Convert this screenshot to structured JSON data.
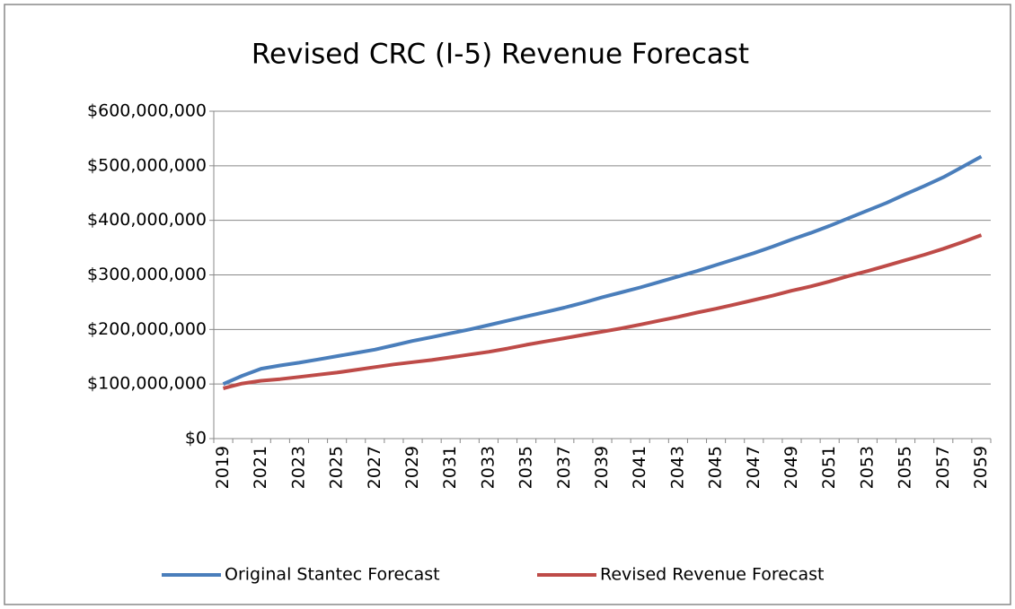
{
  "chart_data": {
    "type": "line",
    "title": "Revised CRC (I-5) Revenue Forecast",
    "categories": [
      "2019",
      null,
      "2021",
      null,
      "2023",
      null,
      "2025",
      null,
      "2027",
      null,
      "2029",
      null,
      "2031",
      null,
      "2033",
      null,
      "2035",
      null,
      "2037",
      null,
      "2039",
      null,
      "2041",
      null,
      "2043",
      null,
      "2045",
      null,
      "2047",
      null,
      "2049",
      null,
      "2051",
      null,
      "2053",
      null,
      "2055",
      null,
      "2057",
      null,
      "2059"
    ],
    "series": [
      {
        "name": "Original Stantec Forecast",
        "color": "#4a7ebb",
        "values": [
          100000000,
          115000000,
          128000000,
          134000000,
          139000000,
          145000000,
          151000000,
          157000000,
          163000000,
          171000000,
          179000000,
          186000000,
          193000000,
          200000000,
          208000000,
          216000000,
          224000000,
          232000000,
          240000000,
          249000000,
          259000000,
          268000000,
          277000000,
          287000000,
          297000000,
          307000000,
          318000000,
          329000000,
          340000000,
          352000000,
          365000000,
          377000000,
          390000000,
          404000000,
          418000000,
          432000000,
          448000000,
          463000000,
          479000000,
          498000000,
          517000000
        ]
      },
      {
        "name": "Revised Revenue Forecast",
        "color": "#be4b48",
        "values": [
          92000000,
          101000000,
          106000000,
          109000000,
          113000000,
          117000000,
          121000000,
          126000000,
          131000000,
          136000000,
          140000000,
          144000000,
          149000000,
          154000000,
          159000000,
          165000000,
          172000000,
          178000000,
          184000000,
          190000000,
          196000000,
          202000000,
          209000000,
          216000000,
          223000000,
          231000000,
          238000000,
          246000000,
          254000000,
          262000000,
          271000000,
          279000000,
          288000000,
          298000000,
          307000000,
          317000000,
          327000000,
          337000000,
          348000000,
          360000000,
          373000000
        ]
      }
    ],
    "ylim": [
      0,
      600000000
    ],
    "yticks": [
      {
        "value": 0,
        "label": "$0"
      },
      {
        "value": 100000000,
        "label": "$100,000,000"
      },
      {
        "value": 200000000,
        "label": "$200,000,000"
      },
      {
        "value": 300000000,
        "label": "$300,000,000"
      },
      {
        "value": 400000000,
        "label": "$400,000,000"
      },
      {
        "value": 500000000,
        "label": "$500,000,000"
      },
      {
        "value": 600000000,
        "label": "$600,000,000"
      }
    ],
    "grid": true,
    "legend": "bottom"
  }
}
